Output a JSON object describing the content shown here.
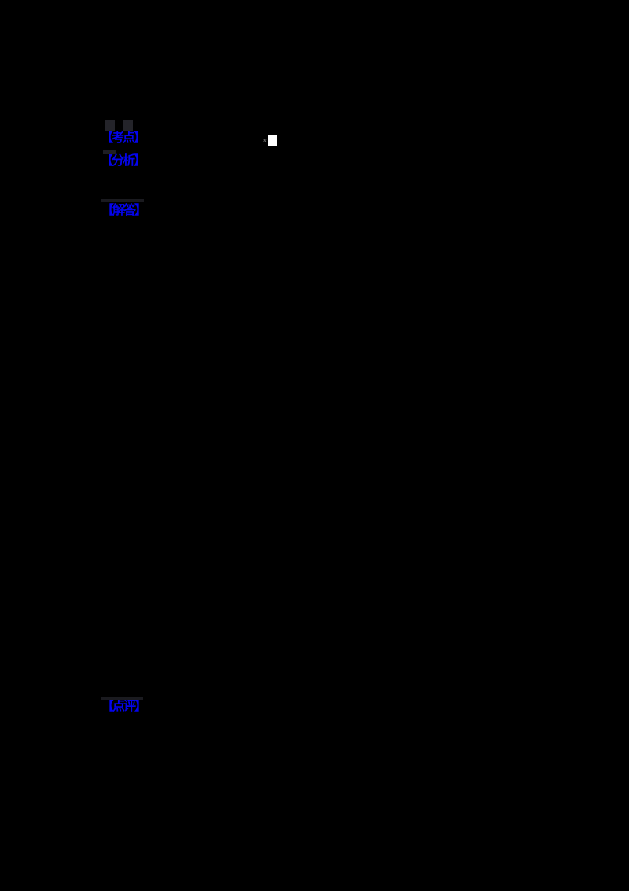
{
  "page": {
    "background_color": "#000000",
    "label_color": "#0404ee",
    "sections": [
      {
        "label": "【考点】"
      },
      {
        "label": "【分析】"
      },
      {
        "label": "【解答】"
      },
      {
        "label": "【点评】"
      }
    ],
    "inline_formula": {
      "glyph": "x",
      "glyph_color": "#606060",
      "box_color": "#ffffff"
    }
  }
}
